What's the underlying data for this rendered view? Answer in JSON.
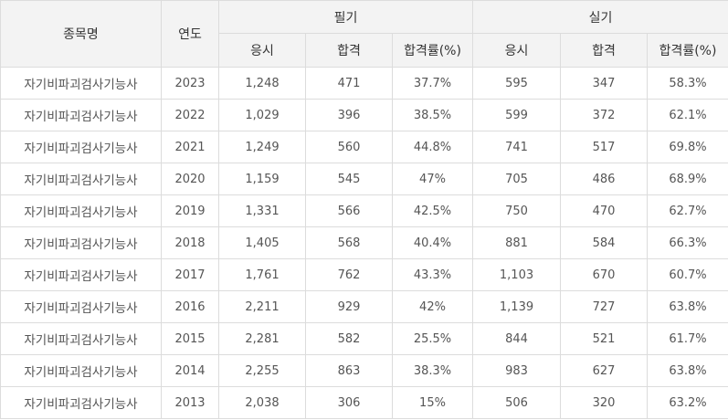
{
  "header": {
    "col_name": "종목명",
    "col_year": "연도",
    "group_written": "필기",
    "group_practical": "실기",
    "sub_applicants": "응시",
    "sub_passed": "합격",
    "sub_rate": "합격률(%)"
  },
  "rows": [
    {
      "name": "자기비파괴검사기능사",
      "year": "2023",
      "w_apply": "1,248",
      "w_pass": "471",
      "w_rate": "37.7%",
      "p_apply": "595",
      "p_pass": "347",
      "p_rate": "58.3%"
    },
    {
      "name": "자기비파괴검사기능사",
      "year": "2022",
      "w_apply": "1,029",
      "w_pass": "396",
      "w_rate": "38.5%",
      "p_apply": "599",
      "p_pass": "372",
      "p_rate": "62.1%"
    },
    {
      "name": "자기비파괴검사기능사",
      "year": "2021",
      "w_apply": "1,249",
      "w_pass": "560",
      "w_rate": "44.8%",
      "p_apply": "741",
      "p_pass": "517",
      "p_rate": "69.8%"
    },
    {
      "name": "자기비파괴검사기능사",
      "year": "2020",
      "w_apply": "1,159",
      "w_pass": "545",
      "w_rate": "47%",
      "p_apply": "705",
      "p_pass": "486",
      "p_rate": "68.9%"
    },
    {
      "name": "자기비파괴검사기능사",
      "year": "2019",
      "w_apply": "1,331",
      "w_pass": "566",
      "w_rate": "42.5%",
      "p_apply": "750",
      "p_pass": "470",
      "p_rate": "62.7%"
    },
    {
      "name": "자기비파괴검사기능사",
      "year": "2018",
      "w_apply": "1,405",
      "w_pass": "568",
      "w_rate": "40.4%",
      "p_apply": "881",
      "p_pass": "584",
      "p_rate": "66.3%"
    },
    {
      "name": "자기비파괴검사기능사",
      "year": "2017",
      "w_apply": "1,761",
      "w_pass": "762",
      "w_rate": "43.3%",
      "p_apply": "1,103",
      "p_pass": "670",
      "p_rate": "60.7%"
    },
    {
      "name": "자기비파괴검사기능사",
      "year": "2016",
      "w_apply": "2,211",
      "w_pass": "929",
      "w_rate": "42%",
      "p_apply": "1,139",
      "p_pass": "727",
      "p_rate": "63.8%"
    },
    {
      "name": "자기비파괴검사기능사",
      "year": "2015",
      "w_apply": "2,281",
      "w_pass": "582",
      "w_rate": "25.5%",
      "p_apply": "844",
      "p_pass": "521",
      "p_rate": "61.7%"
    },
    {
      "name": "자기비파괴검사기능사",
      "year": "2014",
      "w_apply": "2,255",
      "w_pass": "863",
      "w_rate": "38.3%",
      "p_apply": "983",
      "p_pass": "627",
      "p_rate": "63.8%"
    },
    {
      "name": "자기비파괴검사기능사",
      "year": "2013",
      "w_apply": "2,038",
      "w_pass": "306",
      "w_rate": "15%",
      "p_apply": "506",
      "p_pass": "320",
      "p_rate": "63.2%"
    }
  ]
}
